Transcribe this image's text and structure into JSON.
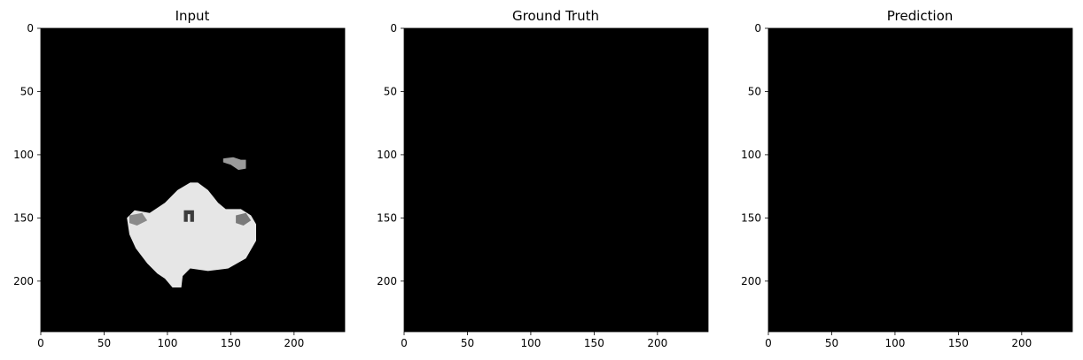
{
  "figure": {
    "background": "#ffffff",
    "image_background": "#000000",
    "axis_color": "#000000"
  },
  "chart_data": [
    {
      "type": "heatmap",
      "title": "Input",
      "xlim": [
        0,
        240
      ],
      "ylim": [
        240,
        0
      ],
      "xticks": [
        0,
        50,
        100,
        150,
        200
      ],
      "yticks": [
        0,
        50,
        100,
        150,
        200
      ],
      "xtick_labels": [
        "0",
        "50",
        "100",
        "150",
        "200"
      ],
      "ytick_labels": [
        "0",
        "50",
        "100",
        "150",
        "200"
      ],
      "colormap": "gray",
      "grid": false,
      "content": "grayscale brain MRI slice; bright tissue region spanning roughly x 68–170, y 122–205, with a small spot near x 145–162, y 102–112",
      "regions": [
        {
          "name": "brain-tissue",
          "color": "#e6e6e6",
          "polygon": [
            [
              118,
              122
            ],
            [
              124,
              122
            ],
            [
              132,
              128
            ],
            [
              140,
              138
            ],
            [
              146,
              143
            ],
            [
              158,
              143
            ],
            [
              166,
              148
            ],
            [
              170,
              155
            ],
            [
              170,
              168
            ],
            [
              162,
              182
            ],
            [
              148,
              190
            ],
            [
              132,
              192
            ],
            [
              118,
              190
            ],
            [
              112,
              196
            ],
            [
              111,
              205
            ],
            [
              104,
              205
            ],
            [
              98,
              198
            ],
            [
              92,
              194
            ],
            [
              84,
              186
            ],
            [
              75,
              174
            ],
            [
              70,
              163
            ],
            [
              68,
              150
            ],
            [
              74,
              144
            ],
            [
              86,
              146
            ],
            [
              98,
              138
            ],
            [
              108,
              128
            ]
          ]
        },
        {
          "name": "ventricle-mark",
          "color": "#3c3c3c",
          "polygon": [
            [
              113,
              144
            ],
            [
              121,
              144
            ],
            [
              121,
              153
            ],
            [
              118,
              153
            ],
            [
              118,
              147
            ],
            [
              116,
              147
            ],
            [
              116,
              153
            ],
            [
              113,
              153
            ]
          ]
        },
        {
          "name": "left-dark-patch",
          "color": "#8a8a8a",
          "polygon": [
            [
              70,
              148
            ],
            [
              80,
              146
            ],
            [
              84,
              152
            ],
            [
              76,
              156
            ],
            [
              70,
              154
            ]
          ]
        },
        {
          "name": "right-dark-patch",
          "color": "#7a7a7a",
          "polygon": [
            [
              154,
              148
            ],
            [
              162,
              146
            ],
            [
              166,
              152
            ],
            [
              160,
              156
            ],
            [
              154,
              154
            ]
          ]
        },
        {
          "name": "small-spot",
          "color": "#9a9a9a",
          "polygon": [
            [
              144,
              103
            ],
            [
              152,
              102
            ],
            [
              158,
              104
            ],
            [
              162,
              104
            ],
            [
              162,
              111
            ],
            [
              156,
              112
            ],
            [
              150,
              108
            ],
            [
              144,
              106
            ]
          ]
        }
      ]
    },
    {
      "type": "heatmap",
      "title": "Ground Truth",
      "xlim": [
        0,
        240
      ],
      "ylim": [
        240,
        0
      ],
      "xticks": [
        0,
        50,
        100,
        150,
        200
      ],
      "yticks": [
        0,
        50,
        100,
        150,
        200
      ],
      "xtick_labels": [
        "0",
        "50",
        "100",
        "150",
        "200"
      ],
      "ytick_labels": [
        "0",
        "50",
        "100",
        "150",
        "200"
      ],
      "colormap": "gray",
      "grid": false,
      "content": "uniformly black (empty mask)",
      "regions": []
    },
    {
      "type": "heatmap",
      "title": "Prediction",
      "xlim": [
        0,
        240
      ],
      "ylim": [
        240,
        0
      ],
      "xticks": [
        0,
        50,
        100,
        150,
        200
      ],
      "yticks": [
        0,
        50,
        100,
        150,
        200
      ],
      "xtick_labels": [
        "0",
        "50",
        "100",
        "150",
        "200"
      ],
      "ytick_labels": [
        "0",
        "50",
        "100",
        "150",
        "200"
      ],
      "colormap": "gray",
      "grid": false,
      "content": "uniformly black (empty mask)",
      "regions": []
    }
  ]
}
